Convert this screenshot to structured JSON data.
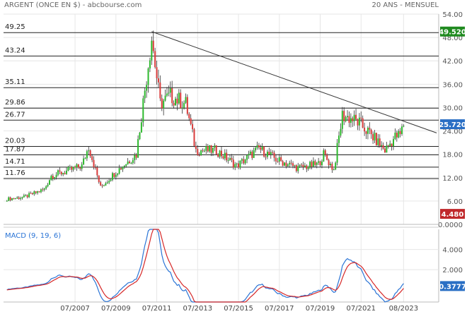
{
  "header": {
    "title": "ARGENT (ONCE EN $) - abcbourse.com",
    "period": "20 ANS - MENSUEL"
  },
  "colors": {
    "up": "#2db92d",
    "down": "#d93b3b",
    "wick": "#333333",
    "macd": "#2a74d6",
    "signal": "#d62828",
    "last_badge": "#2a6fc4",
    "high_badge": "#1f8a1f",
    "low_badge": "#c0282b",
    "grid": "#e6e6e6"
  },
  "price_chart": {
    "y_ticks": [
      "54.00",
      "48.00",
      "42.00",
      "36.00",
      "30.00",
      "24.00",
      "18.00",
      "12.00",
      "6.00",
      "0.0000"
    ],
    "badges": {
      "high": "49.520",
      "last": "25.720",
      "low": "4.480"
    },
    "levels": [
      {
        "label": "49.25",
        "value": 49.25
      },
      {
        "label": "43.24",
        "value": 43.24
      },
      {
        "label": "35.11",
        "value": 35.11
      },
      {
        "label": "29.86",
        "value": 29.86
      },
      {
        "label": "26.77",
        "value": 26.77
      },
      {
        "label": "20.03",
        "value": 20.03
      },
      {
        "label": "17.87",
        "value": 17.87
      },
      {
        "label": "14.71",
        "value": 14.71
      },
      {
        "label": "11.76",
        "value": 11.76
      }
    ]
  },
  "macd_chart": {
    "label": "MACD (9, 19, 6)",
    "y_ticks": [
      "4.000",
      "2.000"
    ],
    "badge": "0.3777"
  },
  "x_ticks": [
    "07/2007",
    "07/2009",
    "07/2011",
    "07/2013",
    "07/2015",
    "07/2017",
    "07/2019",
    "07/2021",
    "08/2023"
  ],
  "chart_data": {
    "type": "candlestick",
    "title": "ARGENT (ONCE EN $)",
    "y_unit": "USD par once",
    "ylim": [
      0,
      54
    ],
    "x": [
      "2004-03",
      "2005-01",
      "2006-01",
      "2006-05",
      "2007-01",
      "2007-11",
      "2008-03",
      "2008-10",
      "2009-07",
      "2010-07",
      "2011-04",
      "2011-09",
      "2012-03",
      "2012-12",
      "2013-06",
      "2014-06",
      "2015-06",
      "2016-07",
      "2017-06",
      "2018-06",
      "2019-06",
      "2019-09",
      "2020-03",
      "2020-08",
      "2021-02",
      "2021-06",
      "2022-03",
      "2022-09",
      "2023-03",
      "2023-06",
      "2023-08"
    ],
    "close": [
      6.5,
      7.0,
      9.0,
      12.5,
      13.5,
      15.0,
      20.0,
      9.5,
      13.5,
      18.0,
      48.0,
      31.0,
      33.0,
      31.0,
      19.0,
      19.0,
      15.0,
      19.5,
      16.5,
      14.5,
      15.5,
      18.0,
      14.0,
      28.0,
      27.0,
      26.0,
      22.0,
      19.0,
      22.5,
      23.0,
      25.7
    ],
    "reference_levels": [
      49.25,
      43.24,
      35.11,
      29.86,
      26.77,
      20.03,
      17.87,
      14.71,
      11.76
    ],
    "trendline": [
      {
        "x": "2011-04",
        "y": 49.5
      },
      {
        "x": "2023-08",
        "y": 26.5
      }
    ],
    "macd": {
      "params": "9, 19, 6",
      "ylim": [
        -1.2,
        6.0
      ],
      "last": 0.3777
    }
  }
}
